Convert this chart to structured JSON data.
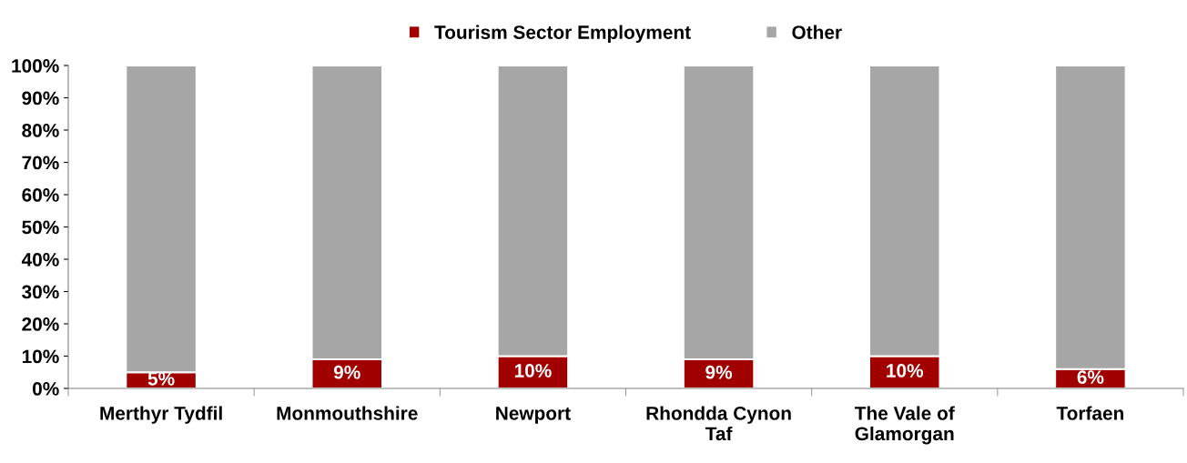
{
  "chart_data": {
    "type": "bar",
    "stacked": true,
    "categories": [
      "Merthyr Tydfil",
      "Monmouthshire",
      "Newport",
      "Rhondda Cynon Taf",
      "The Vale of Glamorgan",
      "Torfaen"
    ],
    "series": [
      {
        "name": "Tourism Sector Employment",
        "color": "#a00000",
        "values": [
          5,
          9,
          10,
          9,
          10,
          6
        ],
        "value_labels": [
          "5%",
          "9%",
          "10%",
          "9%",
          "10%",
          "6%"
        ]
      },
      {
        "name": "Other",
        "color": "#a6a6a6",
        "values": [
          95,
          91,
          90,
          91,
          90,
          94
        ]
      }
    ],
    "ylim": [
      0,
      100
    ],
    "yticks": [
      {
        "value": 0,
        "label": "0%"
      },
      {
        "value": 10,
        "label": "10%"
      },
      {
        "value": 20,
        "label": "20%"
      },
      {
        "value": 30,
        "label": "30%"
      },
      {
        "value": 40,
        "label": "40%"
      },
      {
        "value": 50,
        "label": "50%"
      },
      {
        "value": 60,
        "label": "60%"
      },
      {
        "value": 70,
        "label": "70%"
      },
      {
        "value": 80,
        "label": "80%"
      },
      {
        "value": 90,
        "label": "90%"
      },
      {
        "value": 100,
        "label": "100%"
      }
    ],
    "legend": "top",
    "grid": false
  }
}
